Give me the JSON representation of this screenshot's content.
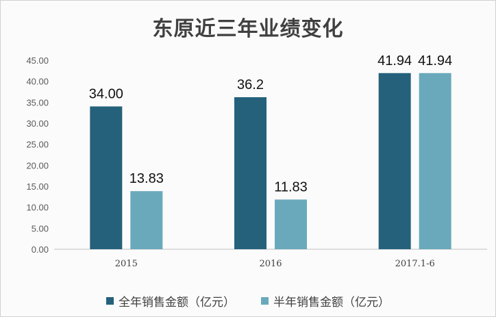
{
  "chart_data": {
    "type": "bar",
    "title": "东原近三年业绩变化",
    "categories": [
      "2015",
      "2016",
      "2017.1-6"
    ],
    "series": [
      {
        "name": "全年销售金额（亿元）",
        "color": "#25617b",
        "values": [
          34.0,
          36.2,
          41.94
        ],
        "labels": [
          "34.00",
          "36.2",
          "41.94"
        ]
      },
      {
        "name": "半年销售金额（亿元）",
        "color": "#6aa9bc",
        "values": [
          13.83,
          11.83,
          41.94
        ],
        "labels": [
          "13.83",
          "11.83",
          "41.94"
        ]
      }
    ],
    "yticks": [
      "0.00",
      "5.00",
      "10.00",
      "15.00",
      "20.00",
      "25.00",
      "30.00",
      "35.00",
      "40.00",
      "45.00"
    ],
    "ylim": [
      0,
      45
    ],
    "grid": false,
    "legend_position": "bottom"
  }
}
